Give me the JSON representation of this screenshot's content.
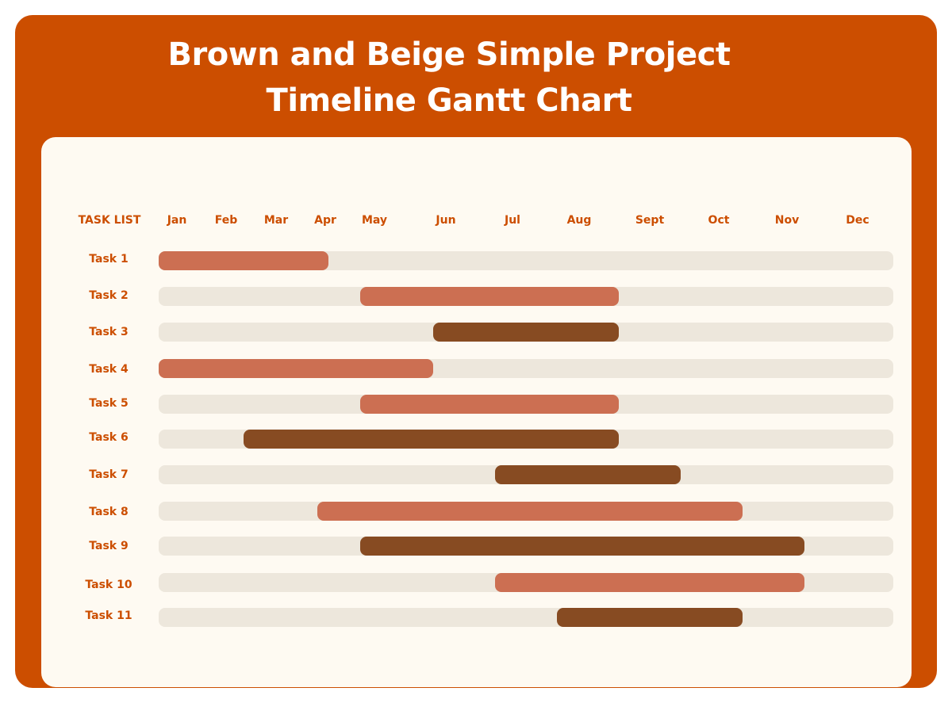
{
  "colors": {
    "frame": "#cc4e00",
    "panel": "#fefaf2",
    "track": "#ede7dc",
    "light_bar": "#cc6f52",
    "dark_bar": "#874b22",
    "label": "#cc4e00"
  },
  "chart_data": {
    "type": "gantt",
    "title_lines": [
      "Brown and Beige Simple Project",
      "Timeline Gantt Chart"
    ],
    "task_header": "TASK LIST",
    "months": [
      "Jan",
      "Feb",
      "Mar",
      "Apr",
      "May",
      "Jun",
      "Jul",
      "Aug",
      "Sept",
      "Oct",
      "Nov",
      "Dec"
    ],
    "tasks": [
      {
        "name": "Task 1",
        "start": "Jan",
        "end": "Apr",
        "tone": "light"
      },
      {
        "name": "Task 2",
        "start": "May",
        "end": "Aug",
        "tone": "light"
      },
      {
        "name": "Task 3",
        "start": "Jun",
        "end": "Aug",
        "tone": "dark"
      },
      {
        "name": "Task 4",
        "start": "Jan",
        "end": "Jun",
        "tone": "light"
      },
      {
        "name": "Task 5",
        "start": "May",
        "end": "Aug",
        "tone": "light"
      },
      {
        "name": "Task 6",
        "start": "Feb",
        "end": "Aug",
        "tone": "dark"
      },
      {
        "name": "Task 7",
        "start": "Jul",
        "end": "Sept",
        "tone": "dark"
      },
      {
        "name": "Task 8",
        "start": "Apr",
        "end": "Oct",
        "tone": "light"
      },
      {
        "name": "Task 9",
        "start": "May",
        "end": "Nov",
        "tone": "dark"
      },
      {
        "name": "Task 10",
        "start": "Jul",
        "end": "Nov",
        "tone": "light"
      },
      {
        "name": "Task 11",
        "start": "Aug",
        "end": "Oct",
        "tone": "dark"
      }
    ]
  }
}
